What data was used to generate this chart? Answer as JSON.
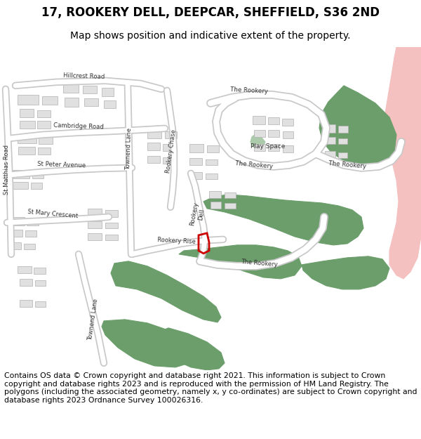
{
  "title": "17, ROOKERY DELL, DEEPCAR, SHEFFIELD, S36 2ND",
  "subtitle": "Map shows position and indicative extent of the property.",
  "footer": "Contains OS data © Crown copyright and database right 2021. This information is subject to Crown copyright and database rights 2023 and is reproduced with the permission of HM Land Registry. The polygons (including the associated geometry, namely x, y co-ordinates) are subject to Crown copyright and database rights 2023 Ordnance Survey 100026316.",
  "map_bg": "#f7f7f7",
  "road_color": "#ffffff",
  "road_outline": "#c8c8c8",
  "building_color": "#e0e0e0",
  "building_outline": "#b0b0b0",
  "green_color": "#6b9e6b",
  "green_light": "#b8d4b8",
  "red_plot": "#cc0000",
  "pink_area": "#f5c0c0",
  "title_fontsize": 12,
  "subtitle_fontsize": 10,
  "footer_fontsize": 7.8
}
